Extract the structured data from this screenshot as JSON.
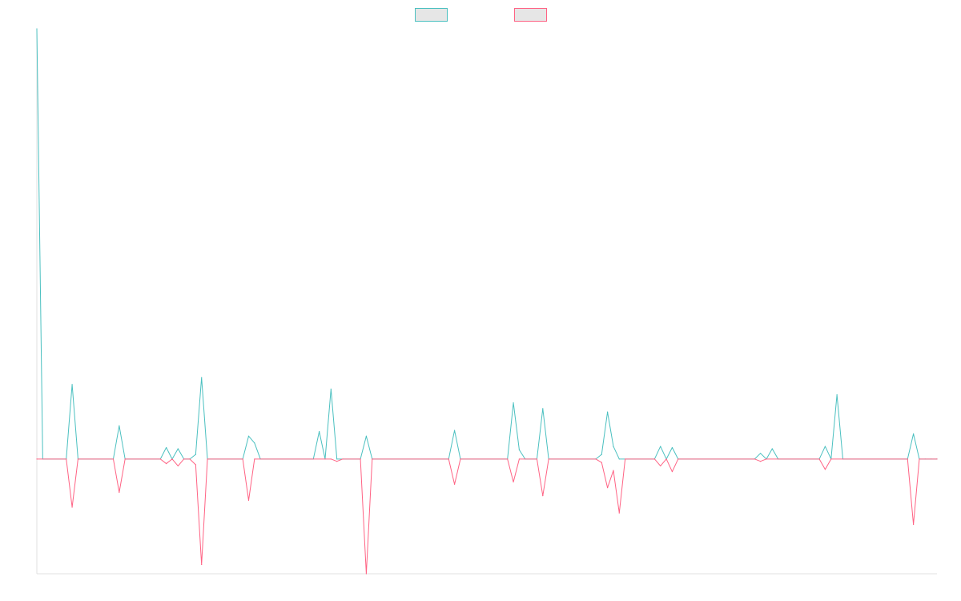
{
  "chart_data": {
    "type": "line",
    "title": "",
    "xlabel": "",
    "ylabel": "",
    "legend_position": "top-center",
    "grid": false,
    "n_points": 154,
    "ylim": [
      -100,
      375
    ],
    "series": [
      {
        "name": "",
        "color": "#4bc0c0",
        "fill": "#e6e6e6",
        "points": [
          [
            0,
            375
          ],
          [
            1,
            0
          ],
          [
            5,
            0
          ],
          [
            6,
            65
          ],
          [
            7,
            0
          ],
          [
            13,
            0
          ],
          [
            14,
            29
          ],
          [
            15,
            0
          ],
          [
            21,
            0
          ],
          [
            22,
            10
          ],
          [
            23,
            0
          ],
          [
            24,
            9
          ],
          [
            25,
            0
          ],
          [
            26,
            0
          ],
          [
            27,
            4
          ],
          [
            28,
            71
          ],
          [
            29,
            0
          ],
          [
            35,
            0
          ],
          [
            36,
            20
          ],
          [
            37,
            14
          ],
          [
            38,
            0
          ],
          [
            47,
            0
          ],
          [
            48,
            24
          ],
          [
            49,
            0
          ],
          [
            50,
            61
          ],
          [
            51,
            0
          ],
          [
            55,
            0
          ],
          [
            56,
            20
          ],
          [
            57,
            0
          ],
          [
            70,
            0
          ],
          [
            71,
            25
          ],
          [
            72,
            0
          ],
          [
            80,
            0
          ],
          [
            81,
            49
          ],
          [
            82,
            8
          ],
          [
            83,
            0
          ],
          [
            85,
            0
          ],
          [
            86,
            44
          ],
          [
            87,
            0
          ],
          [
            95,
            0
          ],
          [
            96,
            4
          ],
          [
            97,
            41
          ],
          [
            98,
            11
          ],
          [
            99,
            0
          ],
          [
            105,
            0
          ],
          [
            106,
            11
          ],
          [
            107,
            0
          ],
          [
            108,
            10
          ],
          [
            109,
            0
          ],
          [
            122,
            0
          ],
          [
            123,
            5
          ],
          [
            124,
            0
          ],
          [
            125,
            9
          ],
          [
            126,
            0
          ],
          [
            133,
            0
          ],
          [
            134,
            11
          ],
          [
            135,
            0
          ],
          [
            136,
            56
          ],
          [
            137,
            0
          ],
          [
            148,
            0
          ],
          [
            149,
            22
          ],
          [
            150,
            0
          ],
          [
            151,
            0
          ],
          [
            152,
            0
          ],
          [
            153,
            0
          ]
        ]
      },
      {
        "name": "",
        "color": "#ff6384",
        "fill": "#e6e6e6",
        "points": [
          [
            0,
            0
          ],
          [
            5,
            0
          ],
          [
            6,
            -42
          ],
          [
            7,
            0
          ],
          [
            13,
            0
          ],
          [
            14,
            -29
          ],
          [
            15,
            0
          ],
          [
            21,
            0
          ],
          [
            22,
            -4
          ],
          [
            23,
            0
          ],
          [
            24,
            -6
          ],
          [
            25,
            0
          ],
          [
            26,
            0
          ],
          [
            27,
            -5
          ],
          [
            28,
            -92
          ],
          [
            29,
            0
          ],
          [
            35,
            0
          ],
          [
            36,
            -36
          ],
          [
            37,
            0
          ],
          [
            50,
            0
          ],
          [
            51,
            -2
          ],
          [
            52,
            0
          ],
          [
            55,
            0
          ],
          [
            56,
            -100
          ],
          [
            57,
            0
          ],
          [
            70,
            0
          ],
          [
            71,
            -22
          ],
          [
            72,
            0
          ],
          [
            80,
            0
          ],
          [
            81,
            -20
          ],
          [
            82,
            0
          ],
          [
            85,
            0
          ],
          [
            86,
            -32
          ],
          [
            87,
            0
          ],
          [
            95,
            0
          ],
          [
            96,
            -3
          ],
          [
            97,
            -25
          ],
          [
            98,
            -10
          ],
          [
            99,
            -47
          ],
          [
            100,
            0
          ],
          [
            105,
            0
          ],
          [
            106,
            -6
          ],
          [
            107,
            0
          ],
          [
            108,
            -11
          ],
          [
            109,
            0
          ],
          [
            122,
            0
          ],
          [
            123,
            -2
          ],
          [
            124,
            0
          ],
          [
            133,
            0
          ],
          [
            134,
            -9
          ],
          [
            135,
            0
          ],
          [
            148,
            0
          ],
          [
            149,
            -57
          ],
          [
            150,
            0
          ],
          [
            153,
            0
          ]
        ]
      }
    ]
  }
}
